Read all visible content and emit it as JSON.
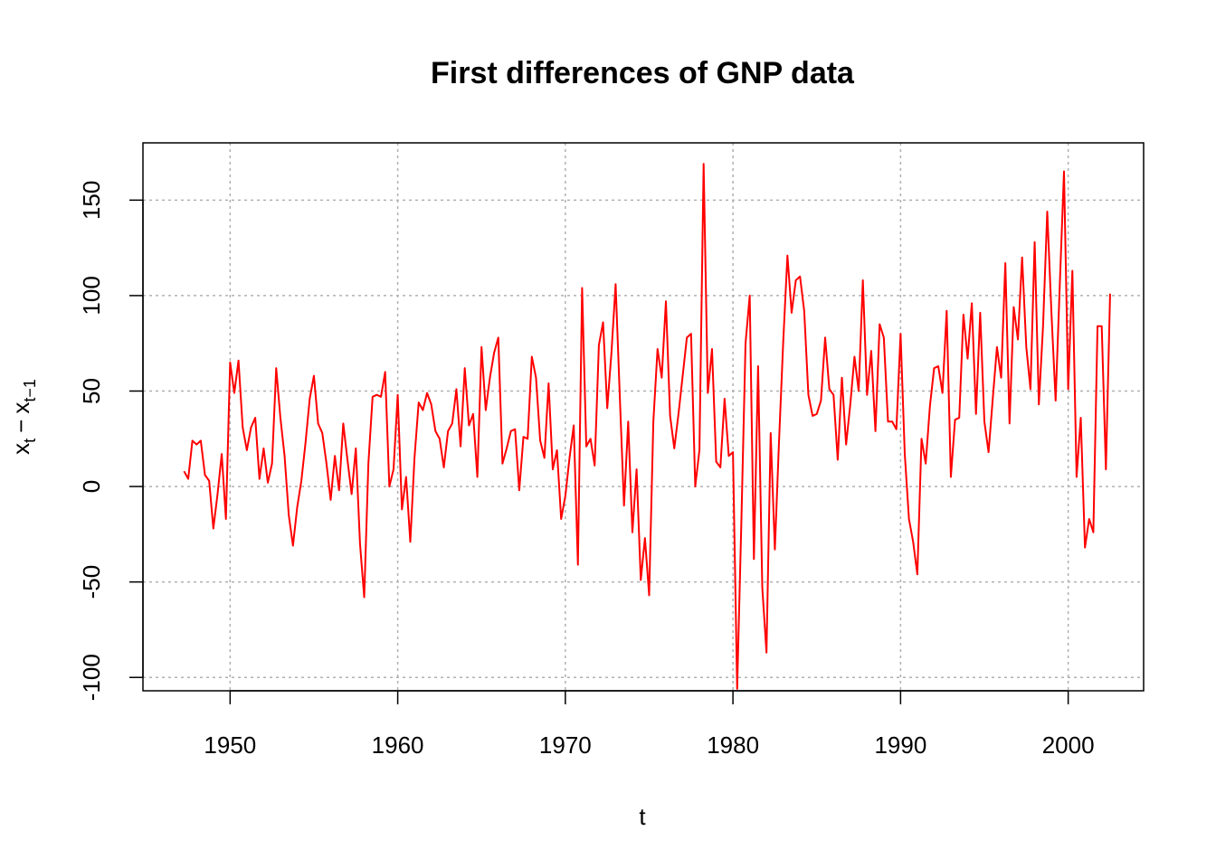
{
  "chart_data": {
    "type": "line",
    "title": "First differences of GNP data",
    "xlabel": "t",
    "ylabel": {
      "base": "x",
      "sub1": "t",
      "minus": "−",
      "sub2": "t−1"
    },
    "xlim": [
      1944.8,
      2004.5
    ],
    "ylim": [
      -107,
      180
    ],
    "x_ticks": [
      1950,
      1960,
      1970,
      1980,
      1990,
      2000
    ],
    "x_tick_labels": [
      "1950",
      "1960",
      "1970",
      "1980",
      "1990",
      "2000"
    ],
    "y_ticks": [
      -100,
      -50,
      0,
      50,
      100,
      150
    ],
    "y_tick_labels": [
      "-100",
      "-50",
      "0",
      "50",
      "100",
      "150"
    ],
    "grid": true,
    "line_color": "#ff0000",
    "grid_color": "#b0b0b0",
    "x_start": 1947.25,
    "x_step": 0.25,
    "series": [
      {
        "values": [
          8,
          4,
          24,
          22,
          24,
          6,
          3,
          -22,
          -4,
          17,
          -17,
          65,
          49,
          66,
          31,
          19,
          31,
          36,
          4,
          20,
          2,
          12,
          62,
          36,
          16,
          -15,
          -31,
          -11,
          3,
          23,
          46,
          58,
          33,
          28,
          12,
          -7,
          16,
          -2,
          33,
          14,
          -4,
          20,
          -30,
          -58,
          12,
          47,
          48,
          47,
          60,
          0,
          9,
          48,
          -12,
          5,
          -29,
          15,
          44,
          40,
          49,
          43,
          29,
          25,
          10,
          29,
          33,
          51,
          21,
          62,
          32,
          38,
          5,
          73,
          40,
          57,
          70,
          78,
          12,
          20,
          29,
          30,
          -2,
          26,
          25,
          68,
          57,
          24,
          15,
          54,
          9,
          19,
          -17,
          -5,
          15,
          32,
          -41,
          104,
          21,
          25,
          11,
          74,
          86,
          41,
          70,
          106,
          47,
          -10,
          34,
          -24,
          9,
          -49,
          -27,
          -57,
          34,
          72,
          57,
          97,
          37,
          20,
          38,
          58,
          78,
          80,
          0,
          19,
          169,
          49,
          72,
          13,
          10,
          46,
          16,
          18,
          -106,
          -19,
          75,
          100,
          -38,
          63,
          -53,
          -87,
          28,
          -33,
          24,
          76,
          121,
          91,
          108,
          110,
          92,
          48,
          37,
          38,
          45,
          78,
          51,
          48,
          14,
          57,
          22,
          43,
          68,
          50,
          108,
          48,
          71,
          29,
          85,
          78,
          34,
          34,
          30,
          80,
          17,
          -17,
          -29,
          -46,
          25,
          12,
          42,
          62,
          63,
          49,
          92,
          5,
          35,
          36,
          90,
          67,
          96,
          38,
          91,
          34,
          18,
          46,
          73,
          57,
          117,
          33,
          94,
          77,
          120,
          73,
          51,
          128,
          43,
          84,
          144,
          91,
          45,
          106,
          165,
          51,
          113,
          5,
          36,
          -32,
          -17,
          -24,
          84,
          84,
          9,
          101
        ]
      }
    ]
  }
}
